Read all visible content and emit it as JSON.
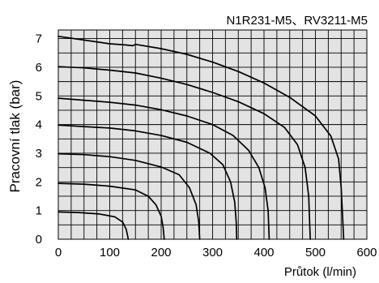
{
  "chart_data": {
    "type": "line",
    "title": "N1R231-M5、RV3211-M5",
    "xlabel": "Průtok (l/min)",
    "ylabel": "Pracovní tlak  (bar)",
    "xlim": [
      0,
      600
    ],
    "ylim": [
      0,
      7.3
    ],
    "x_ticks": [
      "0",
      "100",
      "200",
      "300",
      "400",
      "500",
      "600"
    ],
    "y_ticks": [
      "0",
      "1",
      "2",
      "3",
      "4",
      "5",
      "6",
      "7"
    ],
    "grid": true,
    "background": "#e3e3e3",
    "line_color": "#000000",
    "series": [
      {
        "points": [
          [
            0,
            0.95
          ],
          [
            40,
            0.93
          ],
          [
            80,
            0.88
          ],
          [
            110,
            0.78
          ],
          [
            125,
            0.6
          ],
          [
            132,
            0.35
          ],
          [
            135,
            0.1
          ],
          [
            136,
            0
          ]
        ]
      },
      {
        "points": [
          [
            0,
            1.95
          ],
          [
            50,
            1.92
          ],
          [
            100,
            1.85
          ],
          [
            150,
            1.72
          ],
          [
            175,
            1.5
          ],
          [
            190,
            1.2
          ],
          [
            200,
            0.8
          ],
          [
            204,
            0.4
          ],
          [
            206,
            0
          ]
        ]
      },
      {
        "points": [
          [
            0,
            2.98
          ],
          [
            50,
            2.95
          ],
          [
            100,
            2.88
          ],
          [
            150,
            2.75
          ],
          [
            200,
            2.52
          ],
          [
            235,
            2.25
          ],
          [
            255,
            1.8
          ],
          [
            268,
            1.2
          ],
          [
            273,
            0.6
          ],
          [
            275,
            0
          ]
        ]
      },
      {
        "points": [
          [
            0,
            3.98
          ],
          [
            50,
            3.93
          ],
          [
            100,
            3.88
          ],
          [
            150,
            3.78
          ],
          [
            200,
            3.62
          ],
          [
            250,
            3.38
          ],
          [
            295,
            3.0
          ],
          [
            320,
            2.6
          ],
          [
            335,
            2.0
          ],
          [
            343,
            1.3
          ],
          [
            346,
            0.6
          ],
          [
            347,
            0
          ]
        ]
      },
      {
        "points": [
          [
            0,
            4.92
          ],
          [
            50,
            4.85
          ],
          [
            100,
            4.78
          ],
          [
            150,
            4.68
          ],
          [
            200,
            4.52
          ],
          [
            250,
            4.3
          ],
          [
            300,
            4.0
          ],
          [
            340,
            3.62
          ],
          [
            370,
            3.1
          ],
          [
            390,
            2.5
          ],
          [
            402,
            1.8
          ],
          [
            408,
            1.0
          ],
          [
            410,
            0
          ]
        ]
      },
      {
        "points": [
          [
            0,
            6.02
          ],
          [
            50,
            5.98
          ],
          [
            100,
            5.9
          ],
          [
            150,
            5.8
          ],
          [
            200,
            5.62
          ],
          [
            250,
            5.4
          ],
          [
            300,
            5.12
          ],
          [
            350,
            4.8
          ],
          [
            400,
            4.38
          ],
          [
            440,
            3.9
          ],
          [
            465,
            3.3
          ],
          [
            480,
            2.5
          ],
          [
            487,
            1.5
          ],
          [
            490,
            0
          ]
        ]
      },
      {
        "points": [
          [
            0,
            7.08
          ],
          [
            50,
            6.95
          ],
          [
            100,
            6.82
          ],
          [
            130,
            6.78
          ],
          [
            145,
            6.75
          ],
          [
            150,
            6.8
          ],
          [
            200,
            6.65
          ],
          [
            250,
            6.45
          ],
          [
            300,
            6.18
          ],
          [
            350,
            5.85
          ],
          [
            400,
            5.45
          ],
          [
            450,
            4.95
          ],
          [
            500,
            4.3
          ],
          [
            530,
            3.6
          ],
          [
            545,
            2.8
          ],
          [
            550,
            1.8
          ],
          [
            553,
            0.7
          ],
          [
            555,
            0
          ]
        ]
      }
    ]
  }
}
